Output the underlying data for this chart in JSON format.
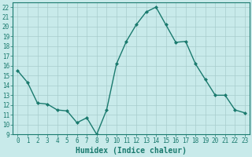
{
  "x": [
    0,
    1,
    2,
    3,
    4,
    5,
    6,
    7,
    8,
    9,
    10,
    11,
    12,
    13,
    14,
    15,
    16,
    17,
    18,
    19,
    20,
    21,
    22,
    23
  ],
  "y": [
    15.5,
    14.3,
    12.2,
    12.1,
    11.5,
    11.4,
    10.2,
    10.7,
    9.0,
    11.5,
    16.2,
    18.5,
    20.2,
    21.5,
    22.0,
    20.2,
    18.4,
    18.5,
    16.2,
    14.6,
    13.0,
    13.0,
    11.5,
    11.2
  ],
  "line_color": "#1a7a6e",
  "marker": "D",
  "marker_size": 2.0,
  "bg_color": "#c8eaea",
  "grid_color": "#a8cccc",
  "xlabel": "Humidex (Indice chaleur)",
  "ylim": [
    9,
    22.5
  ],
  "xlim": [
    -0.5,
    23.5
  ],
  "yticks": [
    9,
    10,
    11,
    12,
    13,
    14,
    15,
    16,
    17,
    18,
    19,
    20,
    21,
    22
  ],
  "xticks": [
    0,
    1,
    2,
    3,
    4,
    5,
    6,
    7,
    8,
    9,
    10,
    11,
    12,
    13,
    14,
    15,
    16,
    17,
    18,
    19,
    20,
    21,
    22,
    23
  ],
  "xlabel_fontsize": 7,
  "tick_fontsize": 5.5,
  "line_width": 1.0
}
